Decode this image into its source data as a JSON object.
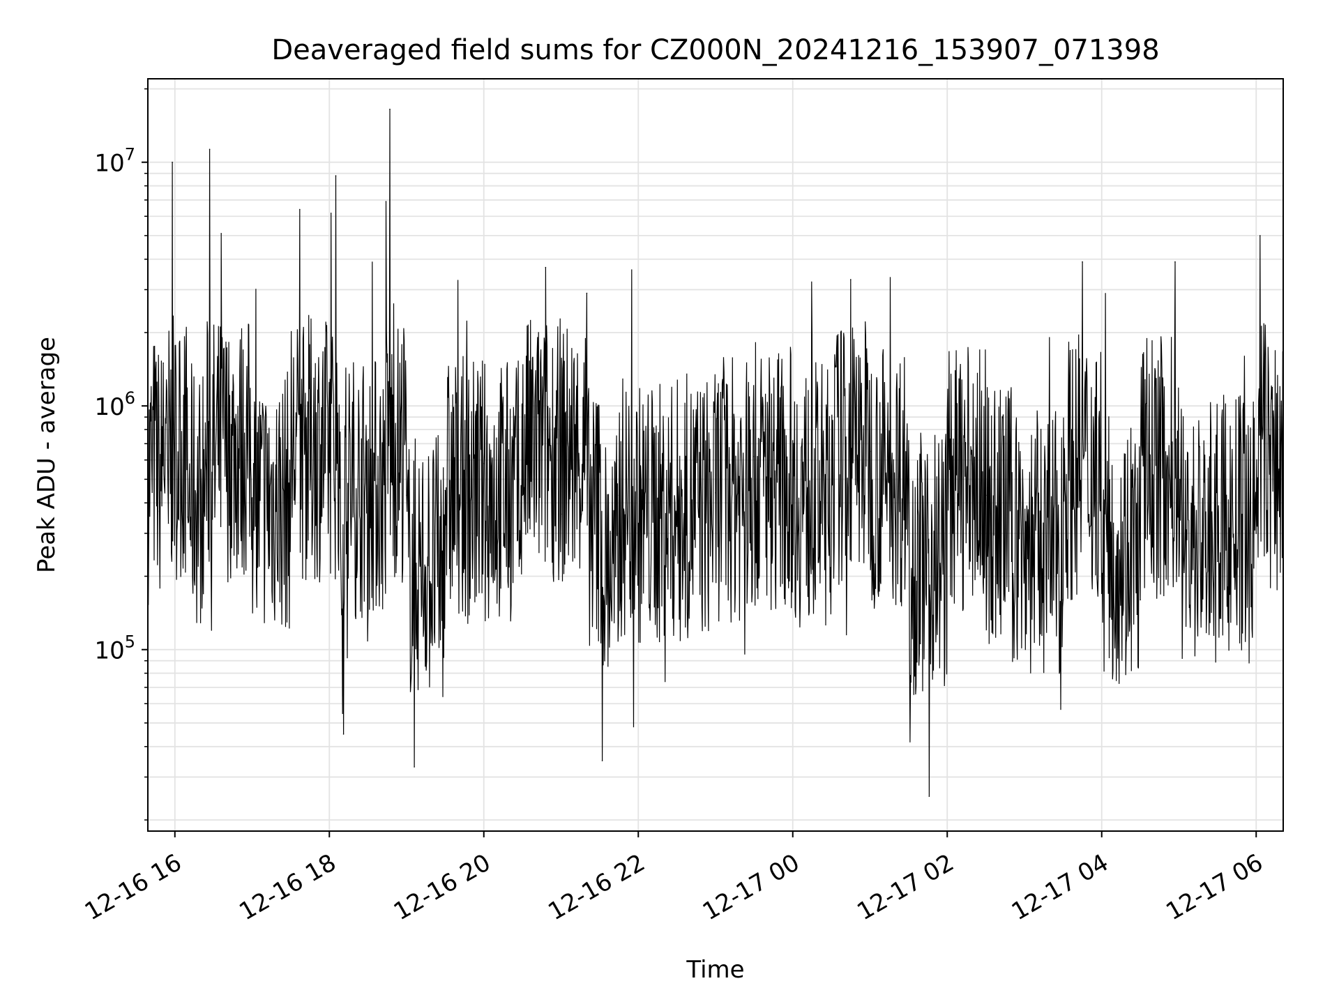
{
  "chart_data": {
    "type": "line",
    "title": "Deaveraged field sums for CZ000N_20241216_153907_071398",
    "xlabel": "Time",
    "ylabel": "Peak ADU - average",
    "x_type": "datetime",
    "xlim": [
      "2024-12-16 15:39",
      "2024-12-17 06:21"
    ],
    "ylim": [
      18000,
      22000000
    ],
    "y_scale": "log",
    "grid": true,
    "legend": "none",
    "x_ticks": [
      {
        "label": "12-16 16",
        "value": "2024-12-16 16:00"
      },
      {
        "label": "12-16 18",
        "value": "2024-12-16 18:00"
      },
      {
        "label": "12-16 20",
        "value": "2024-12-16 20:00"
      },
      {
        "label": "12-16 22",
        "value": "2024-12-16 22:00"
      },
      {
        "label": "12-17 00",
        "value": "2024-12-17 00:00"
      },
      {
        "label": "12-17 02",
        "value": "2024-12-17 02:00"
      },
      {
        "label": "12-17 04",
        "value": "2024-12-17 04:00"
      },
      {
        "label": "12-17 06",
        "value": "2024-12-17 06:00"
      }
    ],
    "y_ticks": [
      {
        "base": "10",
        "exp": "5",
        "value": 100000
      },
      {
        "base": "10",
        "exp": "6",
        "value": 1000000
      },
      {
        "base": "10",
        "exp": "7",
        "value": 10000000
      }
    ],
    "series": [
      {
        "color": "#000000",
        "x": [
          "2024-12-16 15:39",
          "2024-12-16 15:42",
          "2024-12-16 15:45",
          "2024-12-16 15:48",
          "2024-12-16 15:51",
          "2024-12-16 15:53",
          "2024-12-16 15:55",
          "2024-12-16 15:58",
          "2024-12-16 16:10",
          "2024-12-16 16:24",
          "2024-12-16 16:27",
          "2024-12-16 16:31",
          "2024-12-16 16:36",
          "2024-12-16 17:00",
          "2024-12-16 17:30",
          "2024-12-16 17:37",
          "2024-12-16 17:48",
          "2024-12-16 18:05",
          "2024-12-16 18:08",
          "2024-12-16 18:11",
          "2024-12-16 18:44",
          "2024-12-16 18:47",
          "2024-12-16 19:00",
          "2024-12-16 19:06",
          "2024-12-16 19:30",
          "2024-12-16 20:00",
          "2024-12-16 20:30",
          "2024-12-16 20:48",
          "2024-12-16 21:00",
          "2024-12-16 21:20",
          "2024-12-16 21:32",
          "2024-12-16 21:45",
          "2024-12-16 22:00",
          "2024-12-16 22:30",
          "2024-12-16 23:00",
          "2024-12-16 23:30",
          "2024-12-17 00:00",
          "2024-12-17 00:30",
          "2024-12-17 00:45",
          "2024-12-17 01:00",
          "2024-12-17 01:30",
          "2024-12-17 01:46",
          "2024-12-17 02:00",
          "2024-12-17 02:30",
          "2024-12-17 02:50",
          "2024-12-17 03:00",
          "2024-12-17 03:30",
          "2024-12-17 03:45",
          "2024-12-17 04:00",
          "2024-12-17 04:30",
          "2024-12-17 04:57",
          "2024-12-17 05:00",
          "2024-12-17 05:30",
          "2024-12-17 06:00",
          "2024-12-17 06:03",
          "2024-12-17 06:10",
          "2024-12-17 06:21"
        ],
        "y": [
          900000,
          600000,
          1400000,
          370000,
          1500000,
          850000,
          330000,
          10000000,
          350000,
          600000,
          11300000,
          350000,
          5100000,
          420000,
          420000,
          6400000,
          1300000,
          8800000,
          460000,
          45000,
          6900000,
          16500000,
          430000,
          33000,
          450000,
          580000,
          430000,
          3700000,
          360000,
          2900000,
          35000,
          430000,
          330000,
          320000,
          440000,
          620000,
          720000,
          300000,
          3300000,
          650000,
          720000,
          25000,
          900000,
          430000,
          230000,
          210000,
          160000,
          3900000,
          170000,
          160000,
          3900000,
          200000,
          230000,
          300000,
          5000000,
          760000,
          900000
        ]
      }
    ]
  }
}
